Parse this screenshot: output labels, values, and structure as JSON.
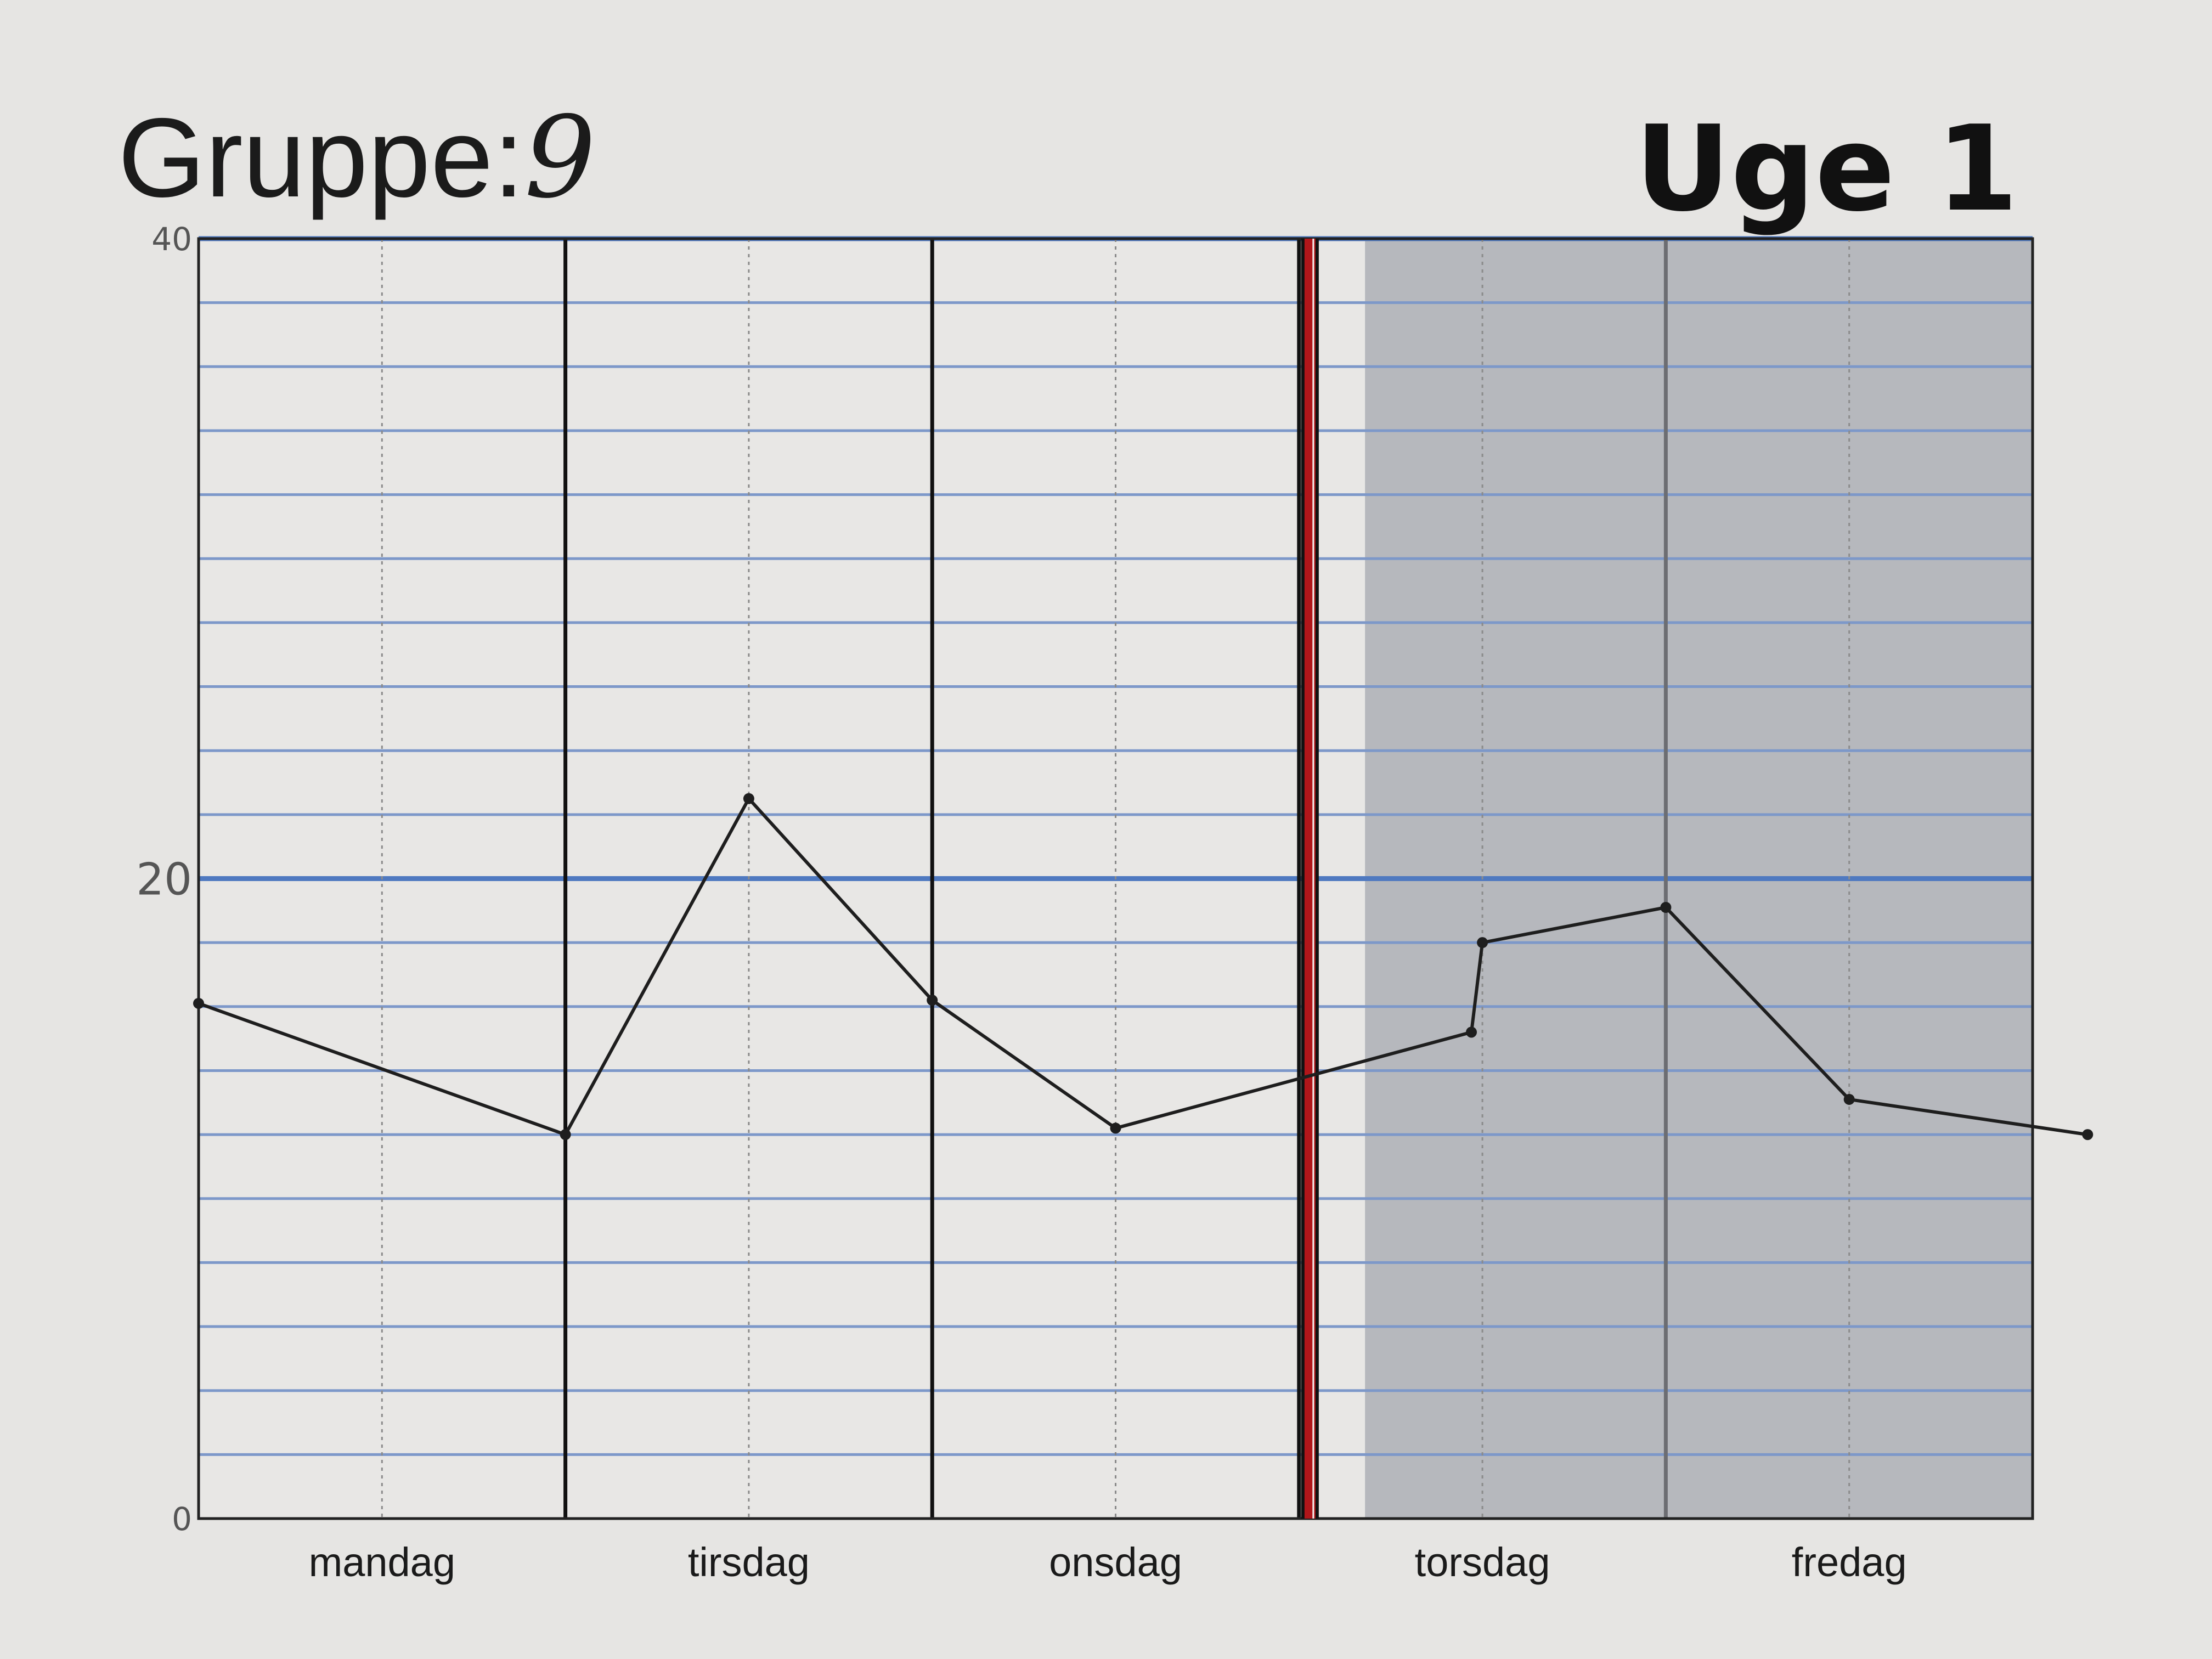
{
  "header": {
    "group_label": "Gruppe:",
    "group_value": "9",
    "week_label": "Uge 1"
  },
  "chart_data": {
    "type": "line",
    "categories": [
      "mandag",
      "tirsdag",
      "onsdag",
      "torsdag",
      "fredag"
    ],
    "ylim": [
      0,
      40
    ],
    "y_ticks": [
      "0",
      "20",
      "40"
    ],
    "x": [
      0,
      1,
      1.5,
      2,
      2.5,
      3.47,
      3.5,
      4,
      4.5,
      5.15
    ],
    "y": [
      16.1,
      12.0,
      22.5,
      16.2,
      12.2,
      15.2,
      18.0,
      19.1,
      13.1,
      12.0
    ],
    "grid": true,
    "current_marker_x": 3.03,
    "shaded_from_x": 3.18,
    "colors": {
      "line": "#1e1e1e",
      "grid": "#7d98c9",
      "major_grid": "#4f79c0",
      "marker": "#b0161a",
      "shade": "#b6b8bd"
    }
  }
}
